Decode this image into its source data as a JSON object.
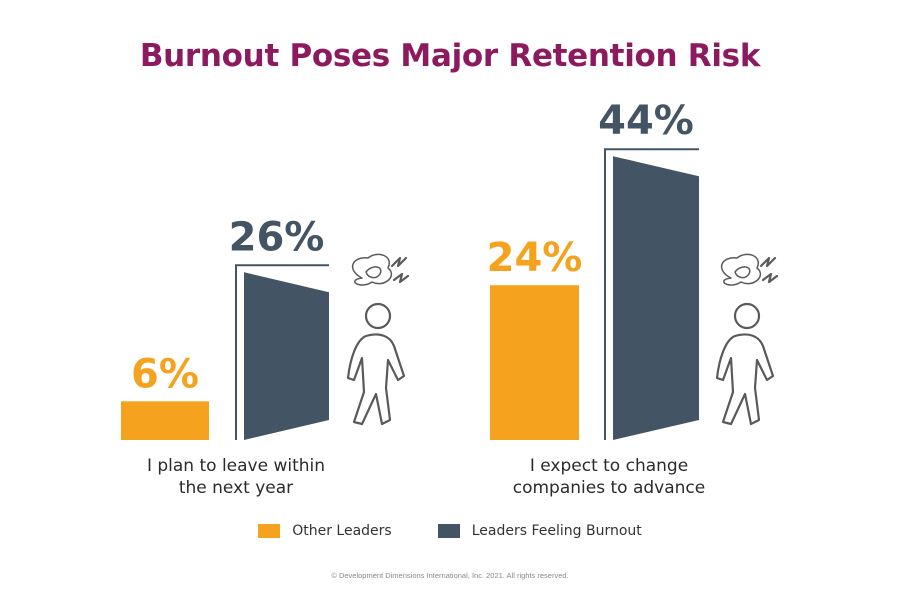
{
  "chart_data": {
    "type": "bar",
    "title": "Burnout Poses Major Retention Risk",
    "categories": [
      "I plan to leave within the next year",
      "I expect to change companies to advance"
    ],
    "category_lines": [
      [
        "I plan to leave within",
        "the next year"
      ],
      [
        "I expect to change",
        "companies to advance"
      ]
    ],
    "series": [
      {
        "name": "Other Leaders",
        "values": [
          6,
          24
        ],
        "labels": [
          "6%",
          "24%"
        ],
        "color": "#f5a31f"
      },
      {
        "name": "Leaders Feeling Burnout",
        "values": [
          26,
          44
        ],
        "labels": [
          "26%",
          "44%"
        ],
        "color": "#435565"
      }
    ],
    "value_suffix": "%",
    "legend_position": "bottom",
    "grid": false
  },
  "icons": [
    "door-icon",
    "walking-stressed-person-icon"
  ],
  "footer": "© Development Dimensions International, Inc. 2021. All rights reserved."
}
